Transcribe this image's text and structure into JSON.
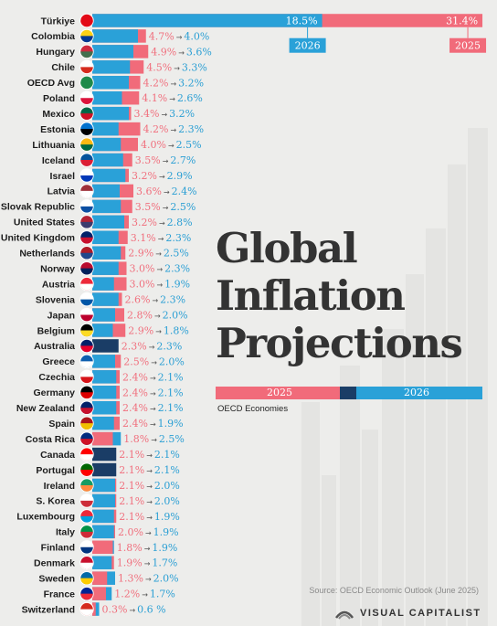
{
  "chart_data": {
    "type": "bar",
    "title": "Global Inflation Projections",
    "subtitle": "OECD Economies",
    "source": "Source: OECD Economic Outlook (June 2025)",
    "brand": "VISUAL CAPITALIST",
    "legend": {
      "2025": "2025",
      "2026": "2026"
    },
    "top_tags": {
      "2026": "2026",
      "2025": "2025"
    },
    "arrow_glyph": "→",
    "colors": {
      "y2025": "#f16b7a",
      "y2026": "#2aa1d8",
      "equal": "#1a3d66",
      "background": "#ededeb"
    },
    "categories": [
      "Türkiye",
      "Colombia",
      "Hungary",
      "Chile",
      "OECD Avg",
      "Poland",
      "Mexico",
      "Estonia",
      "Lithuania",
      "Iceland",
      "Israel",
      "Latvia",
      "Slovak Republic",
      "United States",
      "United Kingdom",
      "Netherlands",
      "Norway",
      "Austria",
      "Slovenia",
      "Japan",
      "Belgium",
      "Australia",
      "Greece",
      "Czechia",
      "Germany",
      "New Zealand",
      "Spain",
      "Costa Rica",
      "Canada",
      "Portugal",
      "Ireland",
      "S. Korea",
      "Luxembourg",
      "Italy",
      "Finland",
      "Denmark",
      "Sweden",
      "France",
      "Switzerland"
    ],
    "series": [
      {
        "name": "2025",
        "values": [
          31.4,
          4.7,
          4.9,
          4.5,
          4.2,
          4.1,
          3.4,
          4.2,
          4.0,
          3.5,
          3.2,
          3.6,
          3.5,
          3.2,
          3.1,
          2.9,
          3.0,
          3.0,
          2.6,
          2.8,
          2.9,
          2.3,
          2.5,
          2.4,
          2.4,
          2.4,
          2.4,
          1.8,
          2.1,
          2.1,
          2.1,
          2.1,
          2.1,
          2.0,
          1.8,
          1.9,
          1.3,
          1.2,
          0.3
        ]
      },
      {
        "name": "2026",
        "values": [
          18.5,
          4.0,
          3.6,
          3.3,
          3.2,
          2.6,
          3.2,
          2.3,
          2.5,
          2.7,
          2.9,
          2.4,
          2.5,
          2.8,
          2.3,
          2.5,
          2.3,
          1.9,
          2.3,
          2.0,
          1.8,
          2.3,
          2.0,
          2.1,
          2.1,
          2.1,
          1.9,
          2.5,
          2.1,
          2.1,
          2.0,
          2.0,
          1.9,
          1.9,
          1.9,
          1.7,
          2.0,
          1.7,
          0.6
        ]
      }
    ],
    "labels_2025": [
      "31.4%",
      "4.7%",
      "4.9%",
      "4.5%",
      "4.2%",
      "4.1%",
      "3.4%",
      "4.2%",
      "4.0%",
      "3.5%",
      "3.2%",
      "3.6%",
      "3.5%",
      "3.2%",
      "3.1%",
      "2.9%",
      "3.0%",
      "3.0%",
      "2.6%",
      "2.8%",
      "2.9%",
      "2.3%",
      "2.5%",
      "2.4%",
      "2.4%",
      "2.4%",
      "2.4%",
      "1.8%",
      "2.1%",
      "2.1%",
      "2.1%",
      "2.1%",
      "2.1%",
      "2.0%",
      "1.8%",
      "1.9%",
      "1.3%",
      "1.2%",
      "0.3%"
    ],
    "labels_2026": [
      "18.5%",
      "4.0%",
      "3.6%",
      "3.3%",
      "3.2%",
      "2.6%",
      "3.2%",
      "2.3%",
      "2.5%",
      "2.7%",
      "2.9%",
      "2.4%",
      "2.5%",
      "2.8%",
      "2.3%",
      "2.5%",
      "2.3%",
      "1.9%",
      "2.3%",
      "2.0%",
      "1.8%",
      "2.3%",
      "2.0%",
      "2.1%",
      "2.1%",
      "2.1%",
      "1.9%",
      "2.5%",
      "2.1%",
      "2.1%",
      "2.0%",
      "2.0%",
      "1.9%",
      "1.9%",
      "1.9%",
      "1.7%",
      "2.0%",
      "1.7%",
      "0.6 %"
    ],
    "flag_colors": [
      [
        "#e30a17",
        "#e30a17"
      ],
      [
        "#fcd116",
        "#003893"
      ],
      [
        "#cd2a3e",
        "#436f4d"
      ],
      [
        "#ffffff",
        "#d52b1e"
      ],
      [
        "#1e8a4a",
        "#1e8a4a"
      ],
      [
        "#ffffff",
        "#dc143c"
      ],
      [
        "#006847",
        "#ce1126"
      ],
      [
        "#0072ce",
        "#000000"
      ],
      [
        "#fdb913",
        "#006a44"
      ],
      [
        "#02529c",
        "#dc1e35"
      ],
      [
        "#ffffff",
        "#0038b8"
      ],
      [
        "#9e3039",
        "#ffffff"
      ],
      [
        "#ffffff",
        "#0b4ea2"
      ],
      [
        "#b22234",
        "#3c3b6e"
      ],
      [
        "#012169",
        "#c8102e"
      ],
      [
        "#ae1c28",
        "#21468b"
      ],
      [
        "#ba0c2f",
        "#00205b"
      ],
      [
        "#ed2939",
        "#ffffff"
      ],
      [
        "#ffffff",
        "#0056a6"
      ],
      [
        "#ffffff",
        "#bc002d"
      ],
      [
        "#000000",
        "#fdda24"
      ],
      [
        "#012169",
        "#e4002b"
      ],
      [
        "#0d5eaf",
        "#ffffff"
      ],
      [
        "#ffffff",
        "#d7141a"
      ],
      [
        "#000000",
        "#dd0000"
      ],
      [
        "#012169",
        "#c8102e"
      ],
      [
        "#aa151b",
        "#f1bf00"
      ],
      [
        "#002b7f",
        "#ce1126"
      ],
      [
        "#ff0000",
        "#ffffff"
      ],
      [
        "#006600",
        "#ff0000"
      ],
      [
        "#169b62",
        "#ff883e"
      ],
      [
        "#ffffff",
        "#cd2e3a"
      ],
      [
        "#ed2939",
        "#00a1de"
      ],
      [
        "#009246",
        "#ce2b37"
      ],
      [
        "#ffffff",
        "#003580"
      ],
      [
        "#c8102e",
        "#ffffff"
      ],
      [
        "#006aa7",
        "#fecc00"
      ],
      [
        "#002395",
        "#ed2939"
      ],
      [
        "#d52b1e",
        "#ffffff"
      ]
    ]
  }
}
